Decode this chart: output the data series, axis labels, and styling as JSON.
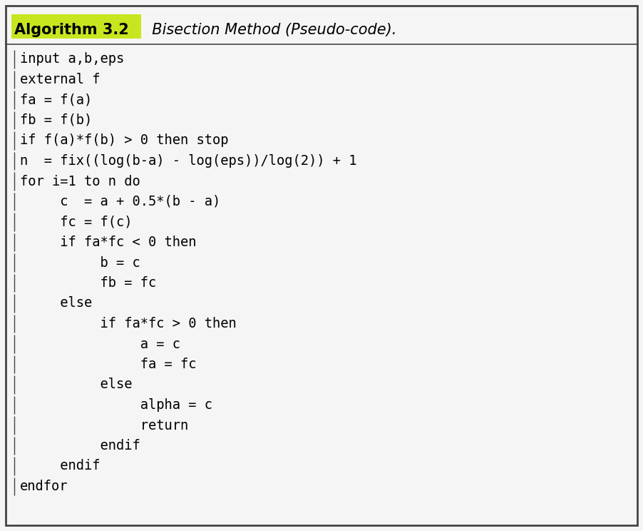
{
  "title_bold": "Algorithm 3.2",
  "title_italic": "  Bisection Method (Pseudo-code).",
  "highlight_color": "#c8e620",
  "background_color": "#f5f5f5",
  "border_color": "#444444",
  "text_color": "#000000",
  "code_lines": [
    {
      "text": "input a,b,eps",
      "indent": 0
    },
    {
      "text": "external f",
      "indent": 0
    },
    {
      "text": "fa = f(a)",
      "indent": 0
    },
    {
      "text": "fb = f(b)",
      "indent": 0
    },
    {
      "text": "if f(a)*f(b) > 0 then stop",
      "indent": 0
    },
    {
      "text": "n  = fix((log(b-a) - log(eps))/log(2)) + 1",
      "indent": 0
    },
    {
      "text": "for i=1 to n do",
      "indent": 0
    },
    {
      "text": "     c  = a + 0.5*(b - a)",
      "indent": 0
    },
    {
      "text": "     fc = f(c)",
      "indent": 0
    },
    {
      "text": "     if fa*fc < 0 then",
      "indent": 0
    },
    {
      "text": "          b = c",
      "indent": 0
    },
    {
      "text": "          fb = fc",
      "indent": 0
    },
    {
      "text": "     else",
      "indent": 0
    },
    {
      "text": "          if fa*fc > 0 then",
      "indent": 0
    },
    {
      "text": "               a = c",
      "indent": 0
    },
    {
      "text": "               fa = fc",
      "indent": 0
    },
    {
      "text": "          else",
      "indent": 0
    },
    {
      "text": "               alpha = c",
      "indent": 0
    },
    {
      "text": "               return",
      "indent": 0
    },
    {
      "text": "          endif",
      "indent": 0
    },
    {
      "text": "     endif",
      "indent": 0
    },
    {
      "text": "endfor",
      "indent": 0
    }
  ],
  "font_size": 13.5,
  "title_font_size": 15.0,
  "figsize": [
    9.02,
    7.44
  ],
  "dpi": 100
}
